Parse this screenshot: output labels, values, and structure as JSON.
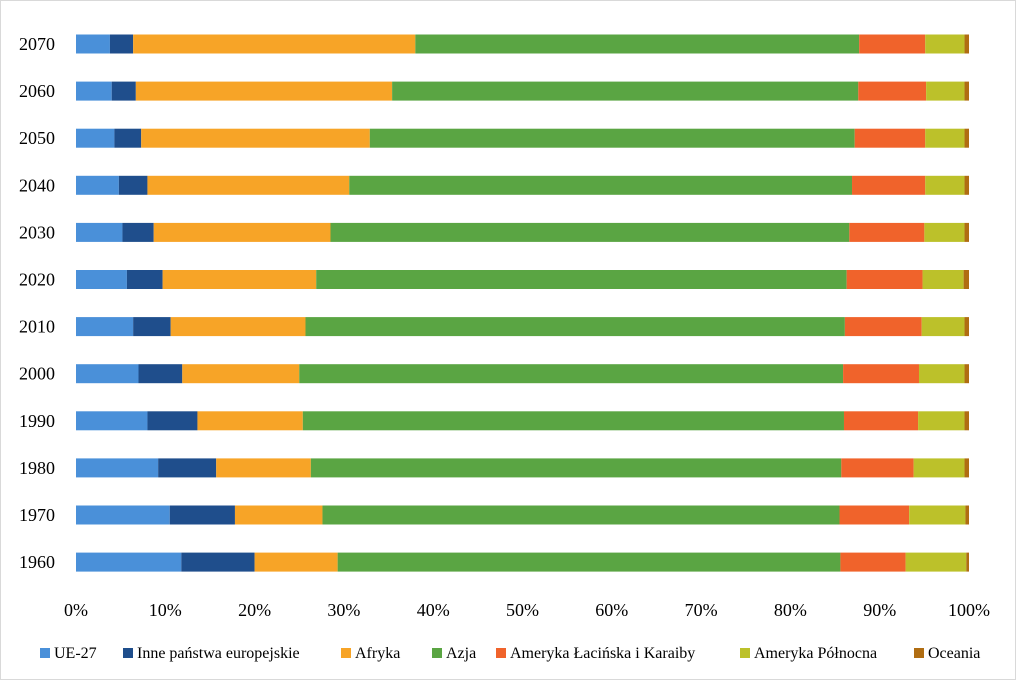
{
  "chart_data": {
    "type": "bar",
    "orientation": "horizontal",
    "stacked": "percent",
    "title": "",
    "xlabel": "",
    "ylabel": "",
    "xlim": [
      0,
      100
    ],
    "x_ticks": [
      "0%",
      "10%",
      "20%",
      "30%",
      "40%",
      "50%",
      "60%",
      "70%",
      "80%",
      "90%",
      "100%"
    ],
    "grid": "none",
    "legend_position": "bottom",
    "categories": [
      "2070",
      "2060",
      "2050",
      "2040",
      "2030",
      "2020",
      "2010",
      "2000",
      "1990",
      "1980",
      "1970",
      "1960"
    ],
    "series": [
      {
        "name": "UE-27",
        "color": "#4a90d9",
        "values": [
          3.8,
          4.0,
          4.3,
          4.8,
          5.2,
          5.7,
          6.4,
          7.0,
          8.0,
          9.2,
          10.5,
          11.8
        ]
      },
      {
        "name": "Inne państwa europejskie",
        "color": "#1f4e8c",
        "values": [
          2.6,
          2.7,
          3.0,
          3.2,
          3.5,
          4.0,
          4.2,
          4.9,
          5.6,
          6.5,
          7.3,
          8.2
        ]
      },
      {
        "name": "Afryka",
        "color": "#f7a427",
        "values": [
          31.6,
          28.7,
          25.6,
          22.6,
          19.8,
          17.2,
          15.1,
          13.1,
          11.8,
          10.6,
          9.8,
          9.3
        ]
      },
      {
        "name": "Azja",
        "color": "#5aa543",
        "values": [
          49.7,
          52.2,
          54.3,
          56.3,
          58.1,
          59.4,
          60.4,
          60.9,
          60.6,
          59.4,
          57.9,
          56.3
        ]
      },
      {
        "name": "Ameryka Łacińska i Karaiby",
        "color": "#f0632b",
        "values": [
          7.4,
          7.6,
          7.9,
          8.2,
          8.4,
          8.5,
          8.6,
          8.5,
          8.3,
          8.1,
          7.8,
          7.3
        ]
      },
      {
        "name": "Ameryka Północna",
        "color": "#bcc12a",
        "values": [
          4.4,
          4.3,
          4.4,
          4.4,
          4.5,
          4.6,
          4.8,
          5.1,
          5.2,
          5.7,
          6.3,
          6.8
        ]
      },
      {
        "name": "Oceania",
        "color": "#b06d12",
        "values": [
          0.5,
          0.5,
          0.5,
          0.5,
          0.5,
          0.6,
          0.5,
          0.5,
          0.5,
          0.5,
          0.4,
          0.3
        ]
      }
    ]
  }
}
